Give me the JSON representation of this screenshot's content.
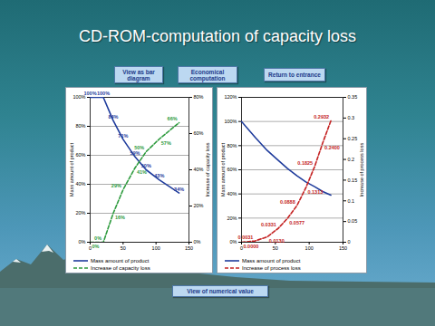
{
  "title": "CD-ROM-computation of capacity loss",
  "buttons": {
    "top": [
      "View as bar diagram",
      "Economical computation",
      "Return to entrance"
    ],
    "bottom": "View of numerical value"
  },
  "chart_data": [
    {
      "type": "line",
      "x": [
        0,
        20,
        35,
        50,
        68,
        85,
        105,
        135
      ],
      "xlim": [
        0,
        150
      ],
      "xticks": [
        0,
        50,
        100,
        150
      ],
      "ylim": [
        0,
        100
      ],
      "yticks": [
        {
          "value": 0,
          "label": "0%"
        },
        {
          "value": 20,
          "label": "20%"
        },
        {
          "value": 40,
          "label": "40%"
        },
        {
          "value": 60,
          "label": "60%"
        },
        {
          "value": 80,
          "label": "80%"
        },
        {
          "value": 100,
          "label": "100%"
        }
      ],
      "y2lim": [
        0,
        80
      ],
      "y2ticks": [
        {
          "value": 0,
          "label": "0%"
        },
        {
          "value": 20,
          "label": "20%"
        },
        {
          "value": 40,
          "label": "40%"
        },
        {
          "value": 60,
          "label": "60%"
        },
        {
          "value": 80,
          "label": "80%"
        }
      ],
      "ylabel": "Mass amount of product",
      "y2label": "Increase of capacity loss",
      "grid": true,
      "legend": "bottom",
      "series": [
        {
          "name": "Mass amount of product",
          "color": "#1f3c9c",
          "line_style": "solid",
          "data_labels": true,
          "values": [
            100,
            100,
            84,
            71,
            59,
            50,
            43,
            34
          ],
          "value_labels": [
            "100%",
            "100%",
            "84%",
            "71%",
            "59%",
            "50%",
            "43%",
            "34%"
          ]
        },
        {
          "name": "Increase of capacity loss",
          "color": "#2e9b3e",
          "line_style": "dashed",
          "axis": "y2",
          "data_labels": true,
          "values": [
            0,
            0,
            16,
            29,
            41,
            50,
            57,
            66
          ],
          "value_labels": [
            "0%",
            "0%",
            "16%",
            "29%",
            "41%",
            "50%",
            "57%",
            "66%"
          ]
        }
      ]
    },
    {
      "type": "line",
      "x": [
        0,
        20,
        38,
        54,
        68,
        82,
        95,
        108,
        120,
        132
      ],
      "xlim": [
        0,
        150
      ],
      "xticks": [
        0,
        50,
        100,
        150
      ],
      "ylim": [
        0,
        120
      ],
      "yticks": [
        {
          "value": 0,
          "label": "0%"
        },
        {
          "value": 20,
          "label": "20%"
        },
        {
          "value": 40,
          "label": "40%"
        },
        {
          "value": 60,
          "label": "60%"
        },
        {
          "value": 80,
          "label": "80%"
        },
        {
          "value": 100,
          "label": "100%"
        },
        {
          "value": 120,
          "label": "120%"
        }
      ],
      "y2lim": [
        0,
        0.35
      ],
      "y2ticks": [
        0,
        0.05,
        0.1,
        0.15,
        0.2,
        0.25,
        0.3,
        0.35
      ],
      "ylabel": "Mass amount of product",
      "y2label": "Increase of process loss",
      "grid": true,
      "legend": "bottom",
      "series": [
        {
          "name": "Mass amount of product",
          "color": "#1f3c9c",
          "line_style": "solid",
          "data_labels": false,
          "values": [
            100,
            87,
            76,
            68,
            61,
            55,
            50,
            46,
            42,
            39
          ]
        },
        {
          "name": "Increase of process loss",
          "color": "#c42222",
          "line_style": "dashed",
          "axis": "y2",
          "data_labels": true,
          "values": [
            0,
            0.0031,
            0.013,
            0.0331,
            0.0577,
            0.0888,
            0.1313,
            0.1825,
            0.24,
            0.2932
          ],
          "value_labels": [
            "0.0000",
            "0.0031",
            "0.0130",
            "0.0331",
            "0.0577",
            "0.0888",
            "0.1313",
            "0.1825",
            "0.2400",
            "0.2932"
          ]
        }
      ]
    }
  ]
}
